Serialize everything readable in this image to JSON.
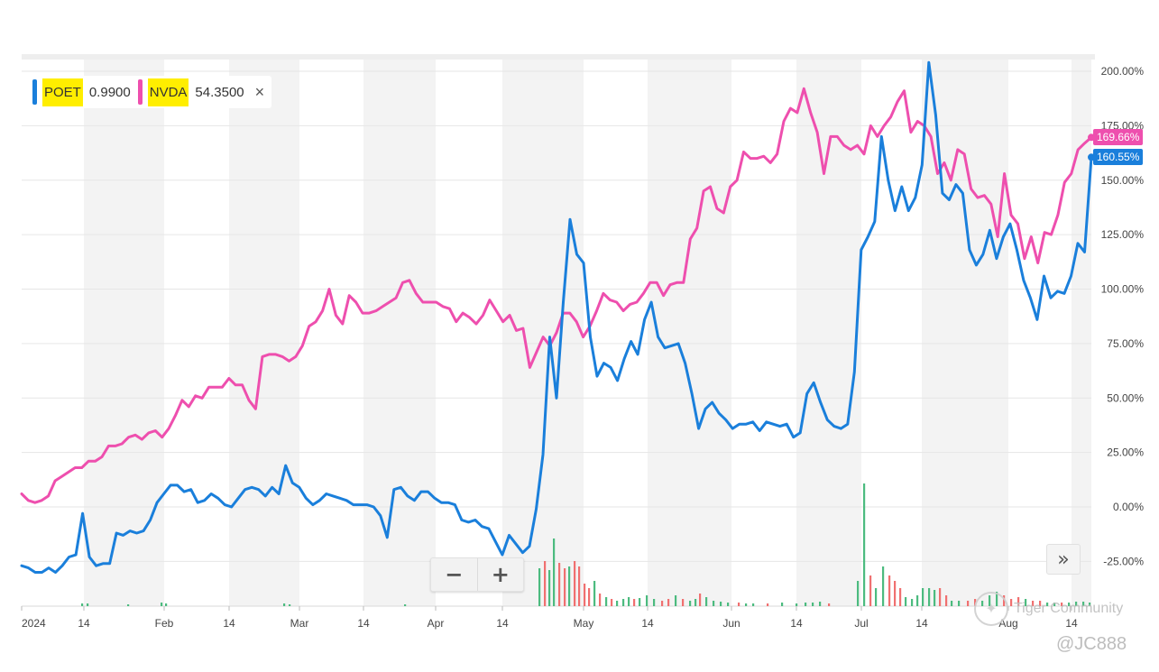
{
  "legend": {
    "items": [
      {
        "symbol": "POET",
        "value": "0.9900",
        "color": "#1a7fdb"
      },
      {
        "symbol": "NVDA",
        "value": "54.3500",
        "color": "#ee4fae"
      }
    ],
    "close_label": "×"
  },
  "controls": {
    "zoom_out": "−",
    "zoom_in": "+",
    "scroll_right": "»"
  },
  "last_tags": {
    "nvda": "169.66%",
    "poet": "160.55%"
  },
  "watermark": {
    "text": "Tiger Community",
    "handle": "@JC888"
  },
  "colors": {
    "poet": "#1a7fdb",
    "nvda": "#ee4fae",
    "vol_up": "#4cbb7f",
    "vol_down": "#f07070",
    "band": "#f3f3f3",
    "grid": "#e6e6e6"
  },
  "chart_data": {
    "type": "line",
    "x_labels": [
      "2024",
      "14",
      "Feb",
      "14",
      "Mar",
      "14",
      "Apr",
      "14",
      "May",
      "14",
      "Jun",
      "14",
      "Jul",
      "14",
      "Aug",
      "14"
    ],
    "y_tick_labels": [
      "200.00%",
      "175.00%",
      "150.00%",
      "125.00%",
      "100.00%",
      "75.00%",
      "50.00%",
      "25.00%",
      "0.00%",
      "-25.00%"
    ],
    "ylim": [
      -45,
      205
    ],
    "y_ticks": [
      200,
      175,
      150,
      125,
      100,
      75,
      50,
      25,
      0,
      -25
    ],
    "series": [
      {
        "name": "POET",
        "values": [
          -27,
          -28,
          -30,
          -30,
          -28,
          -30,
          -27,
          -23,
          -22,
          -3,
          -23,
          -27,
          -26,
          -26,
          -12,
          -13,
          -11,
          -12,
          -11,
          -6,
          2,
          6,
          10,
          10,
          7,
          8,
          2,
          3,
          6,
          4,
          1,
          0,
          4,
          8,
          9,
          8,
          5,
          9,
          6,
          19,
          11,
          9,
          4,
          1,
          3,
          6,
          5,
          4,
          3,
          1,
          1,
          1,
          0,
          -4,
          -14,
          8,
          9,
          5,
          3,
          7,
          7,
          4,
          2,
          2,
          1,
          -6,
          -7,
          -6,
          -9,
          -10,
          -16,
          -22,
          -13,
          -17,
          -21,
          -18,
          -1,
          24,
          78,
          50,
          94,
          132,
          116,
          112,
          78,
          60,
          66,
          64,
          58,
          68,
          76,
          70,
          86,
          94,
          78,
          73,
          74,
          75,
          66,
          52,
          36,
          45,
          48,
          43,
          40,
          36,
          38,
          38,
          39,
          35,
          39,
          38,
          37,
          38,
          32,
          34,
          52,
          57,
          48,
          40,
          37,
          36,
          38,
          62,
          118,
          124,
          131,
          170,
          150,
          136,
          147,
          136,
          142,
          157,
          204,
          180,
          144,
          141,
          148,
          144,
          118,
          111,
          116,
          127,
          114,
          124,
          130,
          118,
          104,
          96,
          86,
          106,
          96,
          99,
          98,
          106,
          121,
          117,
          160.55
        ]
      },
      {
        "name": "NVDA",
        "values": [
          6,
          3,
          2,
          3,
          5,
          12,
          14,
          16,
          18,
          18,
          21,
          21,
          23,
          28,
          28,
          29,
          32,
          33,
          31,
          34,
          35,
          32,
          36,
          42,
          49,
          46,
          51,
          50,
          55,
          55,
          55,
          59,
          56,
          56,
          49,
          45,
          69,
          70,
          70,
          69,
          67,
          69,
          74,
          83,
          85,
          90,
          100,
          88,
          84,
          97,
          94,
          89,
          89,
          90,
          92,
          94,
          96,
          103,
          104,
          98,
          94,
          94,
          94,
          92,
          91,
          85,
          89,
          87,
          84,
          88,
          95,
          90,
          85,
          88,
          81,
          82,
          64,
          71,
          78,
          74,
          80,
          89,
          89,
          85,
          78,
          83,
          90,
          98,
          95,
          94,
          90,
          93,
          94,
          98,
          103,
          103,
          97,
          102,
          103,
          103,
          123,
          128,
          145,
          147,
          137,
          135,
          147,
          150,
          163,
          160,
          160,
          161,
          158,
          162,
          177,
          183,
          181,
          192,
          181,
          172,
          153,
          170,
          170,
          166,
          164,
          166,
          162,
          175,
          170,
          175,
          179,
          186,
          191,
          172,
          177,
          175,
          170,
          153,
          158,
          150,
          164,
          162,
          146,
          142,
          143,
          139,
          124,
          153,
          134,
          130,
          114,
          124,
          112,
          126,
          125,
          134,
          149,
          153,
          164,
          167,
          169.66
        ]
      }
    ]
  }
}
